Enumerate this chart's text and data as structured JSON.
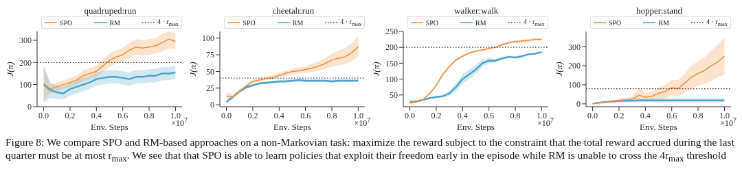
{
  "chart_data": [
    {
      "type": "line",
      "title": "quadruped:run",
      "xlabel": "Env. Steps",
      "ylabel": "J(π)",
      "legend": "top",
      "marker": "none",
      "xlim": [
        -0.05,
        1.05
      ],
      "ylim": [
        0,
        340
      ],
      "xticks": [
        {
          "value": 0,
          "label": "0.0"
        },
        {
          "value": 0.2,
          "label": "0.2"
        },
        {
          "value": 0.4,
          "label": "0.4"
        },
        {
          "value": 0.6,
          "label": "0.6"
        },
        {
          "value": 0.8,
          "label": "0.8"
        },
        {
          "value": 1,
          "label": "1.0"
        }
      ],
      "yticks": [
        0,
        100,
        200,
        300
      ],
      "x": [
        0,
        0.05,
        0.1,
        0.15,
        0.2,
        0.25,
        0.3,
        0.35,
        0.4,
        0.45,
        0.5,
        0.55,
        0.6,
        0.65,
        0.7,
        0.75,
        0.8,
        0.85,
        0.9,
        0.95,
        1.0
      ],
      "series": [
        {
          "name": "SPO",
          "color": "#f28e3c",
          "values": [
            105,
            80,
            90,
            100,
            110,
            120,
            140,
            150,
            160,
            185,
            210,
            225,
            235,
            255,
            270,
            265,
            270,
            275,
            290,
            305,
            295
          ],
          "lower": [
            25,
            60,
            70,
            80,
            90,
            100,
            115,
            125,
            135,
            155,
            180,
            195,
            205,
            220,
            235,
            230,
            235,
            240,
            250,
            265,
            260
          ],
          "upper": [
            185,
            100,
            110,
            120,
            130,
            140,
            165,
            175,
            185,
            215,
            240,
            255,
            265,
            290,
            305,
            300,
            305,
            310,
            330,
            340,
            330
          ]
        },
        {
          "name": "RM",
          "color": "#4aa3c8",
          "values": [
            100,
            75,
            65,
            60,
            80,
            90,
            100,
            110,
            125,
            130,
            135,
            135,
            130,
            125,
            135,
            135,
            140,
            140,
            150,
            150,
            155
          ],
          "lower": [
            20,
            40,
            35,
            35,
            50,
            60,
            70,
            80,
            95,
            100,
            105,
            105,
            100,
            95,
            105,
            105,
            110,
            110,
            120,
            120,
            125
          ],
          "upper": [
            185,
            110,
            95,
            90,
            110,
            120,
            130,
            140,
            155,
            160,
            165,
            165,
            160,
            155,
            165,
            165,
            170,
            170,
            180,
            180,
            185
          ]
        }
      ],
      "ref_lines": [
        {
          "axis": "y",
          "value": 200,
          "label": "4 · r$_{max}$",
          "color": "#333333",
          "line_style": "dotted"
        }
      ],
      "annotations": [
        "×10$^{7}$"
      ]
    },
    {
      "type": "line",
      "title": "cheetah:run",
      "xlabel": "Env. Steps",
      "ylabel": "J(π)",
      "legend": "top",
      "marker": "none",
      "xlim": [
        -0.05,
        1.05
      ],
      "ylim": [
        -3,
        110
      ],
      "xticks": [
        {
          "value": 0,
          "label": "0.0"
        },
        {
          "value": 0.2,
          "label": "0.2"
        },
        {
          "value": 0.4,
          "label": "0.4"
        },
        {
          "value": 0.6,
          "label": "0.6"
        },
        {
          "value": 0.8,
          "label": "0.8"
        },
        {
          "value": 1,
          "label": "1.0"
        }
      ],
      "yticks": [
        0,
        25,
        50,
        75,
        100
      ],
      "x": [
        0,
        0.05,
        0.1,
        0.15,
        0.2,
        0.25,
        0.3,
        0.35,
        0.4,
        0.45,
        0.5,
        0.55,
        0.6,
        0.65,
        0.7,
        0.75,
        0.8,
        0.85,
        0.9,
        0.95,
        1.0
      ],
      "series": [
        {
          "name": "SPO",
          "color": "#f28e3c",
          "values": [
            13,
            12,
            20,
            28,
            35,
            37,
            39,
            41,
            44,
            47,
            50,
            51,
            53,
            55,
            58,
            62,
            67,
            70,
            72,
            78,
            87
          ],
          "lower": [
            9,
            9,
            17,
            25,
            32,
            35,
            37,
            38,
            41,
            43,
            46,
            47,
            48,
            49,
            51,
            54,
            57,
            59,
            61,
            65,
            73
          ],
          "upper": [
            19,
            15,
            23,
            31,
            38,
            40,
            42,
            44,
            48,
            51,
            54,
            56,
            58,
            61,
            65,
            70,
            77,
            81,
            85,
            92,
            103
          ]
        },
        {
          "name": "RM",
          "color": "#4aa3c8",
          "values": [
            4,
            12,
            20,
            26,
            29,
            32,
            33,
            34,
            35,
            35,
            36,
            37,
            36,
            36,
            36,
            36,
            35,
            36,
            36,
            36,
            36
          ],
          "lower": [
            1,
            10,
            18,
            24,
            27,
            30,
            31,
            32,
            33,
            33,
            34,
            35,
            34,
            34,
            34,
            34,
            33,
            34,
            34,
            34,
            34
          ],
          "upper": [
            7,
            14,
            22,
            28,
            31,
            34,
            35,
            36,
            37,
            37,
            38,
            39,
            38,
            38,
            38,
            38,
            37,
            38,
            38,
            38,
            38
          ]
        }
      ],
      "ref_lines": [
        {
          "axis": "y",
          "value": 40,
          "label": "4 · r$_{max}$",
          "color": "#333333",
          "line_style": "dotted"
        }
      ],
      "annotations": [
        "×10$^{7}$"
      ]
    },
    {
      "type": "line",
      "title": "walker:walk",
      "xlabel": "Env. Steps",
      "ylabel": "J(π)",
      "legend": "top",
      "marker": "none",
      "xlim": [
        -0.05,
        1.05
      ],
      "ylim": [
        13,
        250
      ],
      "xticks": [
        {
          "value": 0,
          "label": "0.0"
        },
        {
          "value": 0.2,
          "label": "0.2"
        },
        {
          "value": 0.4,
          "label": "0.4"
        },
        {
          "value": 0.6,
          "label": "0.6"
        },
        {
          "value": 0.8,
          "label": "0.8"
        },
        {
          "value": 1,
          "label": "1.0"
        }
      ],
      "yticks": [
        50,
        100,
        150,
        200,
        250
      ],
      "x": [
        0,
        0.05,
        0.1,
        0.15,
        0.2,
        0.25,
        0.3,
        0.35,
        0.4,
        0.45,
        0.5,
        0.55,
        0.6,
        0.65,
        0.7,
        0.75,
        0.8,
        0.85,
        0.9,
        0.95,
        1.0
      ],
      "series": [
        {
          "name": "SPO",
          "color": "#f28e3c",
          "values": [
            25,
            28,
            35,
            55,
            80,
            115,
            140,
            160,
            172,
            182,
            188,
            192,
            196,
            200,
            208,
            215,
            218,
            220,
            222,
            225,
            225
          ],
          "lower": [
            22,
            25,
            32,
            51,
            75,
            110,
            135,
            156,
            168,
            179,
            185,
            189,
            193,
            197,
            204,
            211,
            214,
            216,
            218,
            221,
            221
          ],
          "upper": [
            28,
            31,
            38,
            59,
            85,
            120,
            145,
            164,
            176,
            185,
            191,
            195,
            199,
            203,
            212,
            219,
            222,
            224,
            226,
            229,
            229
          ]
        },
        {
          "name": "RM",
          "color": "#4aa3c8",
          "values": [
            28,
            30,
            35,
            40,
            44,
            46,
            55,
            75,
            100,
            115,
            130,
            150,
            158,
            158,
            165,
            170,
            168,
            172,
            178,
            180,
            185
          ],
          "lower": [
            25,
            27,
            32,
            37,
            41,
            42,
            48,
            62,
            85,
            100,
            115,
            138,
            150,
            152,
            160,
            166,
            164,
            168,
            175,
            177,
            183
          ],
          "upper": [
            31,
            33,
            38,
            43,
            47,
            50,
            62,
            88,
            115,
            130,
            145,
            162,
            166,
            164,
            170,
            174,
            172,
            176,
            181,
            183,
            187
          ]
        }
      ],
      "ref_lines": [
        {
          "axis": "y",
          "value": 200,
          "label": "4 · r$_{max}$",
          "color": "#333333",
          "line_style": "dotted"
        }
      ],
      "annotations": [
        "×10$^{7}$"
      ]
    },
    {
      "type": "line",
      "title": "hopper:stand",
      "xlabel": "Env. Steps",
      "ylabel": "J(π)",
      "legend": "top",
      "marker": "none",
      "xlim": [
        -0.05,
        1.05
      ],
      "ylim": [
        -15,
        380
      ],
      "xticks": [
        {
          "value": 0,
          "label": "0.0"
        },
        {
          "value": 0.2,
          "label": "0.2"
        },
        {
          "value": 0.4,
          "label": "0.4"
        },
        {
          "value": 0.6,
          "label": "0.6"
        },
        {
          "value": 0.8,
          "label": "0.8"
        },
        {
          "value": 1,
          "label": "1.0"
        }
      ],
      "yticks": [
        0,
        100,
        200,
        300
      ],
      "x": [
        0,
        0.05,
        0.1,
        0.15,
        0.2,
        0.25,
        0.3,
        0.35,
        0.4,
        0.45,
        0.5,
        0.55,
        0.6,
        0.65,
        0.7,
        0.75,
        0.8,
        0.85,
        0.9,
        0.95,
        1.0
      ],
      "series": [
        {
          "name": "SPO",
          "color": "#f28e3c",
          "values": [
            2,
            5,
            10,
            14,
            18,
            22,
            25,
            45,
            35,
            40,
            55,
            65,
            85,
            80,
            110,
            140,
            160,
            175,
            200,
            220,
            250
          ],
          "lower": [
            0,
            2,
            5,
            8,
            10,
            12,
            12,
            20,
            15,
            18,
            25,
            30,
            45,
            40,
            60,
            80,
            95,
            105,
            120,
            140,
            155
          ],
          "upper": [
            4,
            8,
            15,
            20,
            26,
            32,
            40,
            80,
            60,
            65,
            85,
            100,
            125,
            125,
            160,
            200,
            225,
            245,
            280,
            310,
            350
          ]
        },
        {
          "name": "RM",
          "color": "#4aa3c8",
          "values": [
            2,
            6,
            10,
            13,
            15,
            16,
            17,
            18,
            18,
            18,
            18,
            18,
            18,
            18,
            18,
            18,
            18,
            18,
            18,
            18,
            18
          ],
          "lower": [
            0,
            3,
            6,
            8,
            8,
            8,
            8,
            8,
            8,
            8,
            8,
            8,
            8,
            8,
            8,
            8,
            8,
            8,
            8,
            8,
            8
          ],
          "upper": [
            4,
            9,
            14,
            18,
            22,
            24,
            26,
            28,
            28,
            28,
            28,
            28,
            28,
            28,
            28,
            28,
            28,
            28,
            28,
            28,
            28
          ]
        }
      ],
      "ref_lines": [
        {
          "axis": "y",
          "value": 80,
          "label": "4 · r$_{max}$",
          "color": "#333333",
          "line_style": "dotted"
        }
      ],
      "annotations": [
        "×10$^{7}$",
        "Figure 8: We compare SPO and RM-based approaches on a non-Markovian task: maximize the reward subject to the constraint that the total reward accrued during the last quarter must be at most r$_{max}$. We see that that SPO is able to learn policies that exploit their freedom early in the episode while RM is unable to cross the 4r$_{max}$ threshold"
      ]
    }
  ]
}
